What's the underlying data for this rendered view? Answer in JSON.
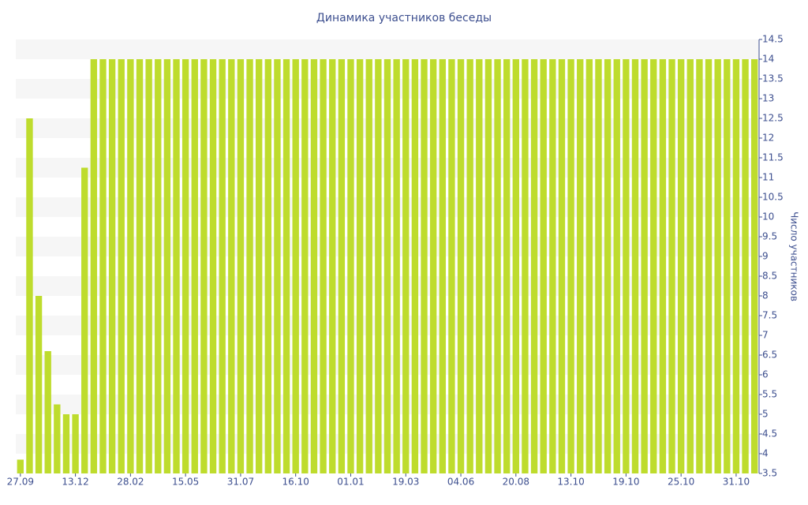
{
  "chart_data": {
    "type": "bar",
    "title": "Динамика участников беседы",
    "y_label": "Число участников",
    "categories": [
      "27.09",
      null,
      null,
      null,
      null,
      null,
      "13.12",
      null,
      null,
      null,
      null,
      null,
      "28.02",
      null,
      null,
      null,
      null,
      null,
      "15.05",
      null,
      null,
      null,
      null,
      null,
      "31.07",
      null,
      null,
      null,
      null,
      null,
      "16.10",
      null,
      null,
      null,
      null,
      null,
      "01.01",
      null,
      null,
      null,
      null,
      null,
      "19.03",
      null,
      null,
      null,
      null,
      null,
      "04.06",
      null,
      null,
      null,
      null,
      null,
      "20.08",
      null,
      null,
      null,
      null,
      null,
      "13.10",
      null,
      null,
      null,
      null,
      null,
      "19.10",
      null,
      null,
      null,
      null,
      null,
      "25.10",
      null,
      null,
      null,
      null,
      null,
      "31.10",
      null,
      null
    ],
    "values": [
      3.85,
      12.5,
      8,
      6.6,
      5.25,
      5,
      5,
      11.25,
      14,
      14,
      14,
      14,
      14,
      14,
      14,
      14,
      14,
      14,
      14,
      14,
      14,
      14,
      14,
      14,
      14,
      14,
      14,
      14,
      14,
      14,
      14,
      14,
      14,
      14,
      14,
      14,
      14,
      14,
      14,
      14,
      14,
      14,
      14,
      14,
      14,
      14,
      14,
      14,
      14,
      14,
      14,
      14,
      14,
      14,
      14,
      14,
      14,
      14,
      14,
      14,
      14,
      14,
      14,
      14,
      14,
      14,
      14,
      14,
      14,
      14,
      14,
      14,
      14,
      14,
      14,
      14,
      14,
      14,
      14,
      14,
      14
    ],
    "color": "#bedc2d",
    "ylim": [
      3.5,
      14.5
    ],
    "yticks": [
      3.5,
      4,
      4.5,
      5,
      5.5,
      6,
      6.5,
      7,
      7.5,
      8,
      8.5,
      9,
      9.5,
      10,
      10.5,
      11,
      11.5,
      12,
      12.5,
      13,
      13.5,
      14,
      14.5
    ],
    "y_axis_side": "right",
    "grid": "bands"
  }
}
